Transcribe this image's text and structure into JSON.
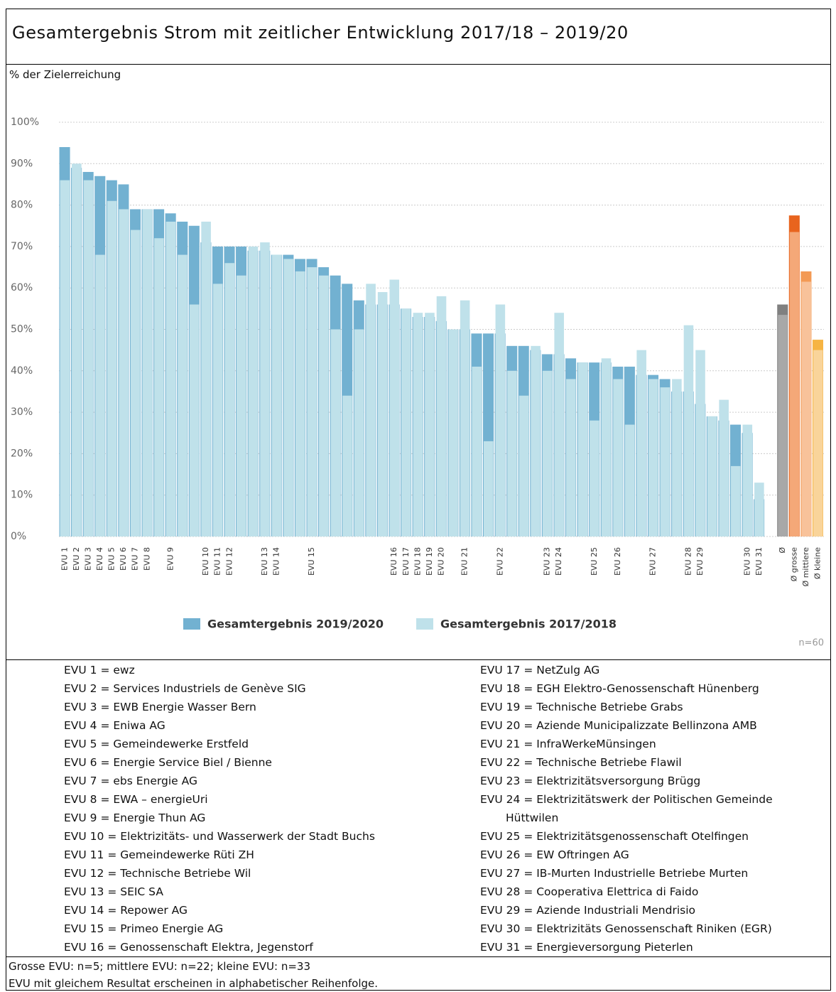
{
  "chart_data": {
    "type": "bar",
    "title": "Gesamtergebnis Strom mit zeitlicher Entwicklung 2017/18 – 2019/20",
    "y_label": "% der Zielerreichung",
    "note": "n=60",
    "categories": [
      "EVU 1",
      "EVU 2",
      "EVU 3",
      "EVU 4",
      "EVU 5",
      "EVU 6",
      "EVU 7",
      "EVU 8",
      null,
      "EVU 9",
      null,
      null,
      "EVU 10",
      "EVU 11",
      "EVU 12",
      null,
      null,
      "EVU 13",
      "EVU 14",
      null,
      null,
      "EVU 15",
      null,
      null,
      null,
      null,
      null,
      null,
      "EVU 16",
      "EVU 17",
      "EVU 18",
      "EVU 19",
      "EVU 20",
      null,
      "EVU 21",
      null,
      null,
      "EVU 22",
      null,
      null,
      null,
      "EVU 23",
      "EVU 24",
      null,
      null,
      "EVU 25",
      null,
      "EVU 26",
      null,
      null,
      "EVU 27",
      null,
      null,
      "EVU 28",
      "EVU 29",
      null,
      null,
      null,
      "EVU 30",
      "EVU 31",
      null,
      "Ø",
      "Ø grosse",
      "Ø mittlere",
      "Ø kleine"
    ],
    "series": [
      {
        "name": "Gesamtergebnis 2019/2020",
        "color": "#72b1d1",
        "values": [
          94,
          89,
          88,
          87,
          86,
          85,
          79,
          79,
          79,
          78,
          76,
          75,
          71,
          70,
          70,
          70,
          69,
          69,
          68,
          68,
          67,
          67,
          65,
          63,
          61,
          57,
          56,
          56,
          56,
          55,
          53,
          53,
          52,
          50,
          50,
          49,
          49,
          49,
          46,
          46,
          45,
          44,
          44,
          43,
          42,
          42,
          42,
          41,
          41,
          39,
          39,
          38,
          35,
          35,
          32,
          29,
          28,
          27,
          25,
          9,
          null,
          56,
          77.5,
          64,
          47.5
        ],
        "colors": [
          "#72b1d1",
          "#72b1d1",
          "#72b1d1",
          "#72b1d1",
          "#72b1d1",
          "#72b1d1",
          "#72b1d1",
          "#72b1d1",
          "#72b1d1",
          "#72b1d1",
          "#72b1d1",
          "#72b1d1",
          "#72b1d1",
          "#72b1d1",
          "#72b1d1",
          "#72b1d1",
          "#72b1d1",
          "#72b1d1",
          "#72b1d1",
          "#72b1d1",
          "#72b1d1",
          "#72b1d1",
          "#72b1d1",
          "#72b1d1",
          "#72b1d1",
          "#72b1d1",
          "#72b1d1",
          "#72b1d1",
          "#72b1d1",
          "#72b1d1",
          "#72b1d1",
          "#72b1d1",
          "#72b1d1",
          "#72b1d1",
          "#72b1d1",
          "#72b1d1",
          "#72b1d1",
          "#72b1d1",
          "#72b1d1",
          "#72b1d1",
          "#72b1d1",
          "#72b1d1",
          "#72b1d1",
          "#72b1d1",
          "#72b1d1",
          "#72b1d1",
          "#72b1d1",
          "#72b1d1",
          "#72b1d1",
          "#72b1d1",
          "#72b1d1",
          "#72b1d1",
          "#72b1d1",
          "#72b1d1",
          "#72b1d1",
          "#72b1d1",
          "#72b1d1",
          "#72b1d1",
          "#72b1d1",
          "#72b1d1",
          null,
          "#808080",
          "#e8641e",
          "#f39a55",
          "#f6b443"
        ]
      },
      {
        "name": "Gesamtergebnis 2017/2018",
        "color": "#bfe1ea",
        "values": [
          86,
          90,
          86,
          68,
          81,
          79,
          74,
          79,
          72,
          76,
          68,
          56,
          76,
          61,
          66,
          63,
          70,
          71,
          68,
          67,
          64,
          65,
          63,
          50,
          34,
          50,
          61,
          59,
          62,
          55,
          54,
          54,
          58,
          50,
          57,
          41,
          23,
          56,
          40,
          34,
          46,
          40,
          54,
          38,
          42,
          28,
          43,
          38,
          27,
          45,
          38,
          36,
          38,
          51,
          45,
          29,
          33,
          17,
          27,
          13,
          null,
          53.5,
          73.5,
          61.5,
          45
        ],
        "colors": [
          "#bfe1ea",
          "#bfe1ea",
          "#bfe1ea",
          "#bfe1ea",
          "#bfe1ea",
          "#bfe1ea",
          "#bfe1ea",
          "#bfe1ea",
          "#bfe1ea",
          "#bfe1ea",
          "#bfe1ea",
          "#bfe1ea",
          "#bfe1ea",
          "#bfe1ea",
          "#bfe1ea",
          "#bfe1ea",
          "#bfe1ea",
          "#bfe1ea",
          "#bfe1ea",
          "#bfe1ea",
          "#bfe1ea",
          "#bfe1ea",
          "#bfe1ea",
          "#bfe1ea",
          "#bfe1ea",
          "#bfe1ea",
          "#bfe1ea",
          "#bfe1ea",
          "#bfe1ea",
          "#bfe1ea",
          "#bfe1ea",
          "#bfe1ea",
          "#bfe1ea",
          "#bfe1ea",
          "#bfe1ea",
          "#bfe1ea",
          "#bfe1ea",
          "#bfe1ea",
          "#bfe1ea",
          "#bfe1ea",
          "#bfe1ea",
          "#bfe1ea",
          "#bfe1ea",
          "#bfe1ea",
          "#bfe1ea",
          "#bfe1ea",
          "#bfe1ea",
          "#bfe1ea",
          "#bfe1ea",
          "#bfe1ea",
          "#bfe1ea",
          "#bfe1ea",
          "#bfe1ea",
          "#bfe1ea",
          "#bfe1ea",
          "#bfe1ea",
          "#bfe1ea",
          "#bfe1ea",
          "#bfe1ea",
          "#bfe1ea",
          null,
          "#a8a8a8",
          "#f4a878",
          "#f8c29a",
          "#f9d49a"
        ]
      }
    ],
    "ylim": [
      0,
      100
    ],
    "yticks": [
      {
        "value": 0,
        "label": "0%"
      },
      {
        "value": 10,
        "label": "10%"
      },
      {
        "value": 20,
        "label": "20%"
      },
      {
        "value": 30,
        "label": "30%"
      },
      {
        "value": 40,
        "label": "40%"
      },
      {
        "value": 50,
        "label": "50%"
      },
      {
        "value": 60,
        "label": "60%"
      },
      {
        "value": 70,
        "label": "70%"
      },
      {
        "value": 80,
        "label": "80%"
      },
      {
        "value": 90,
        "label": "90%"
      },
      {
        "value": 100,
        "label": "100%"
      }
    ],
    "grid": true,
    "legend": "bottom"
  },
  "evu_list": [
    "EVU 1 = ewz",
    "EVU 2 = Services Industriels de Genève SIG",
    "EVU 3 = EWB Energie Wasser Bern",
    "EVU 4 = Eniwa AG",
    "EVU 5 = Gemeindewerke Erstfeld",
    "EVU 6 = Energie Service Biel / Bienne",
    "EVU 7 = ebs Energie AG",
    "EVU 8 = EWA – energieUri",
    "EVU 9 = Energie Thun AG",
    "EVU 10 = Elektrizitäts- und Wasserwerk der Stadt Buchs",
    "EVU 11 = Gemeindewerke Rüti ZH",
    "EVU 12 = Technische Betriebe Wil",
    "EVU 13 = SEIC SA",
    "EVU 14 = Repower AG",
    "EVU 15 = Primeo Energie AG",
    "EVU 16 = Genossenschaft Elektra, Jegenstorf",
    "EVU 17 = NetZulg AG",
    "EVU 18 = EGH Elektro-Genossenschaft Hünenberg",
    "EVU 19 = Technische Betriebe Grabs",
    "EVU 20 = Aziende Municipalizzate Bellinzona AMB",
    "EVU 21 = InfraWerkeMünsingen",
    "EVU 22 = Technische Betriebe Flawil",
    "EVU 23 = Elektrizitätsversorgung Brügg",
    "EVU 24 = Elektrizitätswerk der Politischen Gemeinde Hüttwilen",
    "EVU 25 = Elektrizitätsgenossenschaft Otelfingen",
    "EVU 26 = EW Oftringen AG",
    "EVU 27 = IB-Murten Industrielle Betriebe Murten",
    "EVU 28 = Cooperativa Elettrica di Faido",
    "EVU 29 = Aziende Industriali Mendrisio",
    "EVU 30 = Elektrizitäts Genossenschaft Riniken (EGR)",
    "EVU 31 = Energieversorgung Pieterlen"
  ],
  "footnotes": [
    "Grosse EVU: n=5; mittlere EVU: n=22; kleine EVU: n=33",
    "EVU mit gleichem Resultat erscheinen in alphabetischer Reihenfolge."
  ]
}
